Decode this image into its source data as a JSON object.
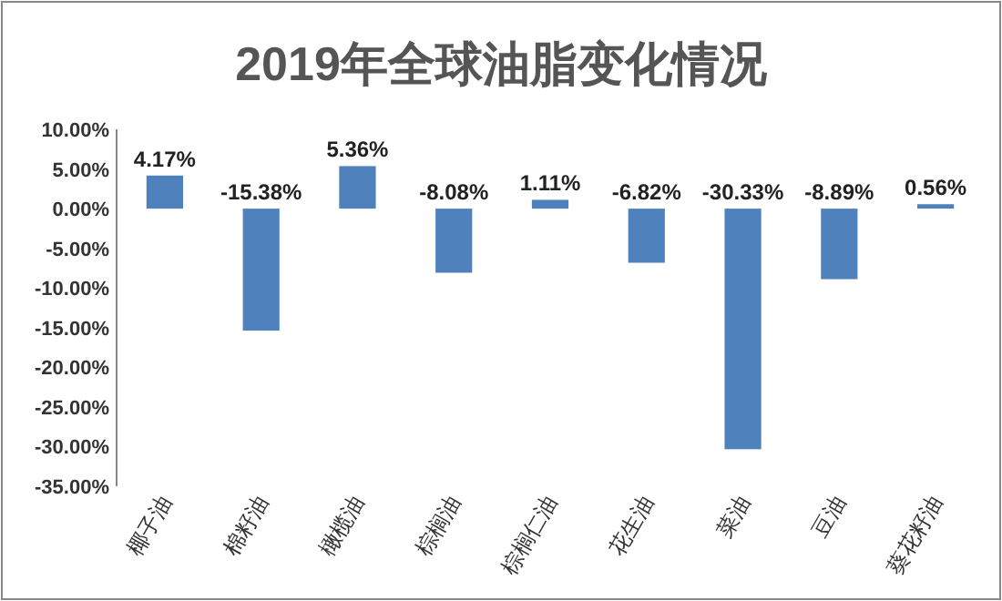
{
  "chart_data": {
    "type": "bar",
    "title": "2019年全球油脂变化情况",
    "categories": [
      "椰子油",
      "棉籽油",
      "橄榄油",
      "棕榈油",
      "棕榈仁油",
      "花生油",
      "菜油",
      "豆油",
      "葵花籽油"
    ],
    "values": [
      4.17,
      -15.38,
      5.36,
      -8.08,
      1.11,
      -6.82,
      -30.33,
      -8.89,
      0.56
    ],
    "value_labels": [
      "4.17%",
      "-15.38%",
      "5.36%",
      "-8.08%",
      "1.11%",
      "-6.82%",
      "-30.33%",
      "-8.89%",
      "0.56%"
    ],
    "color": "#4f81bd",
    "ylim": [
      -35,
      10
    ],
    "yticks": [
      {
        "value": 10,
        "label": "10.00%"
      },
      {
        "value": 5,
        "label": "5.00%"
      },
      {
        "value": 0,
        "label": "0.00%"
      },
      {
        "value": -5,
        "label": "-5.00%"
      },
      {
        "value": -10,
        "label": "-10.00%"
      },
      {
        "value": -15,
        "label": "-15.00%"
      },
      {
        "value": -20,
        "label": "-20.00%"
      },
      {
        "value": -25,
        "label": "-25.00%"
      },
      {
        "value": -30,
        "label": "-30.00%"
      },
      {
        "value": -35,
        "label": "-35.00%"
      }
    ]
  }
}
